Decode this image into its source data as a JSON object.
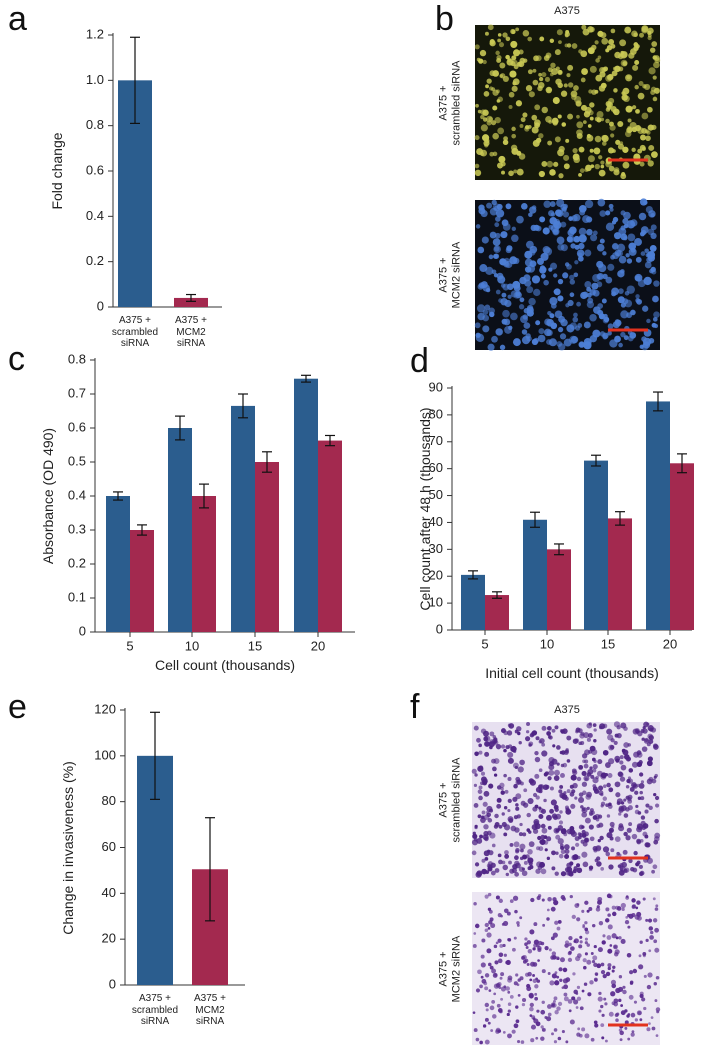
{
  "panels": [
    "a",
    "b",
    "c",
    "d",
    "e",
    "f"
  ],
  "images": [
    {
      "title": "A375",
      "labels": [
        "A375 +\nscrambled siRNA",
        "A375 +\nMCM2 siRNA"
      ]
    },
    {
      "title": "A375",
      "labels": [
        "A375 +\nscrambled siRNA",
        "A375 +\nMCM2 siRNA"
      ]
    }
  ],
  "chart_data": [
    {
      "type": "bar",
      "y_label": "Fold change",
      "categories": [
        "A375 +\nscrambled\nsiRNA",
        "A375 +\nMCM2\nsiRNA"
      ],
      "values": [
        1.0,
        0.04
      ],
      "errors": [
        0.19,
        0.015
      ],
      "colors": [
        "#2b5d8e",
        "#a3294f"
      ],
      "ylim": [
        0,
        1.2
      ],
      "yticks": [
        0,
        0.2,
        0.4,
        0.6,
        0.8,
        {
          "value": 1,
          "label": "1.0"
        },
        1.2
      ]
    },
    {
      "type": "bar",
      "x_label": "Cell count (thousands)",
      "y_label": "Absorbance (OD 490)",
      "categories": [
        "5",
        "10",
        "15",
        "20"
      ],
      "series": [
        {
          "color": "#2b5d8e",
          "values": [
            0.4,
            0.6,
            0.665,
            0.745
          ],
          "errors": [
            0.012,
            0.035,
            0.035,
            0.01
          ]
        },
        {
          "color": "#a3294f",
          "values": [
            0.3,
            0.4,
            0.5,
            0.563
          ],
          "errors": [
            0.015,
            0.035,
            0.03,
            0.015
          ]
        }
      ],
      "ylim": [
        0,
        0.8
      ],
      "yticks": [
        0,
        0.1,
        0.2,
        0.3,
        0.4,
        0.5,
        0.6,
        0.7,
        0.8
      ]
    },
    {
      "type": "bar",
      "x_label": "Initial cell count (thousands)",
      "y_label": "Cell count after 48 h (thousands)",
      "categories": [
        "5",
        "10",
        "15",
        "20"
      ],
      "series": [
        {
          "color": "#2b5d8e",
          "values": [
            20.5,
            41,
            63,
            85
          ],
          "errors": [
            1.5,
            2.8,
            2,
            3.5
          ]
        },
        {
          "color": "#a3294f",
          "values": [
            13,
            30,
            41.5,
            62
          ],
          "errors": [
            1.2,
            2,
            2.5,
            3.5
          ]
        }
      ],
      "ylim": [
        0,
        90
      ],
      "yticks": [
        0,
        10,
        20,
        30,
        40,
        50,
        60,
        70,
        80,
        90
      ]
    },
    {
      "type": "bar",
      "y_label": "Change in invasiveness (%)",
      "categories": [
        "A375 +\nscrambled\nsiRNA",
        "A375 +\nMCM2\nsiRNA"
      ],
      "values": [
        100,
        50.5
      ],
      "errors": [
        19,
        22.5
      ],
      "colors": [
        "#2b5d8e",
        "#a3294f"
      ],
      "ylim": [
        0,
        120
      ],
      "yticks": [
        0,
        20,
        40,
        60,
        80,
        100,
        120
      ]
    }
  ]
}
